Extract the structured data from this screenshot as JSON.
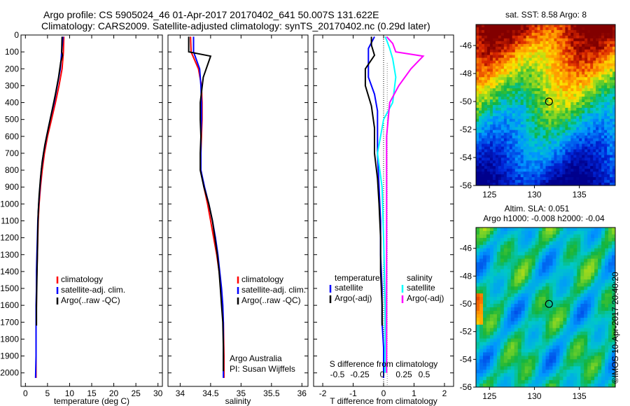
{
  "header": {
    "line1": "Argo profile: CS 5905024_46 01-Apr-2017 20170402_641 50.007S 131.622E",
    "line2": "Climatology: CARS2009. Satellite-adjusted climatology: synTS_20170402.nc (0.29d later)"
  },
  "colors": {
    "climatology": "#ff0000",
    "satellite": "#0000ff",
    "argo": "#000000",
    "salinity_satellite": "#00ffff",
    "salinity_argo": "#ff00ff"
  },
  "chart_data": [
    {
      "type": "line",
      "id": "temperature",
      "xlabel": "temperature (deg C)",
      "ylabel": "",
      "xlim": [
        -1,
        31
      ],
      "ylim": [
        2080,
        0
      ],
      "xticks": [
        0,
        5,
        10,
        15,
        20,
        25,
        30
      ],
      "yticks": [
        0,
        100,
        200,
        300,
        400,
        500,
        600,
        700,
        800,
        900,
        1000,
        1100,
        1200,
        1300,
        1400,
        1500,
        1600,
        1700,
        1800,
        1900,
        2000
      ],
      "legend": {
        "position": "bottom-right",
        "entries": [
          "climatology",
          "satellite-adj. clim.",
          "Argo(..raw -QC)"
        ]
      },
      "series": [
        {
          "name": "climatology",
          "x": [
            8.7,
            8.6,
            8.3,
            7.6,
            6.8,
            5.9,
            5.0,
            4.3,
            3.8,
            3.4,
            3.1,
            2.9,
            2.8,
            2.7,
            2.6,
            2.5,
            2.5,
            2.4,
            2.4,
            2.4
          ],
          "y": [
            10,
            100,
            200,
            300,
            400,
            500,
            600,
            700,
            800,
            900,
            1000,
            1100,
            1200,
            1300,
            1400,
            1500,
            1600,
            1700,
            1900,
            2030
          ]
        },
        {
          "name": "satellite-adj. clim.",
          "x": [
            8.5,
            8.2,
            7.9,
            7.2,
            6.5,
            5.6,
            4.8,
            4.1,
            3.6,
            3.3,
            3.0,
            2.8,
            2.7,
            2.6,
            2.5,
            2.5,
            2.4,
            2.4,
            2.4,
            2.3
          ],
          "y": [
            10,
            100,
            200,
            300,
            400,
            500,
            600,
            700,
            800,
            900,
            1000,
            1100,
            1200,
            1300,
            1400,
            1500,
            1600,
            1700,
            1900,
            2030
          ]
        },
        {
          "name": "Argo(..raw -QC)",
          "x": [
            8.3,
            8.2,
            8.4,
            8.0,
            7.5,
            6.8,
            6.0,
            5.2,
            4.4,
            3.8,
            3.4,
            3.1,
            2.9,
            2.8,
            2.7,
            2.6,
            2.5,
            2.5
          ],
          "y": [
            10,
            100,
            120,
            160,
            250,
            350,
            450,
            550,
            650,
            750,
            850,
            950,
            1050,
            1150,
            1300,
            1450,
            1600,
            1720
          ]
        }
      ]
    },
    {
      "type": "line",
      "id": "salinity",
      "xlabel": "salinity",
      "xlim": [
        33.8,
        36.1
      ],
      "ylim": [
        2080,
        0
      ],
      "xticks": [
        34,
        34.5,
        35,
        35.5,
        36
      ],
      "legend": {
        "position": "bottom-right",
        "entries": [
          "climatology",
          "satellite-adj. clim.",
          "Argo(..raw -QC)"
        ]
      },
      "annotation": [
        "Argo Australia",
        "PI: Susan Wijffels"
      ],
      "series": [
        {
          "name": "climatology",
          "x": [
            34.17,
            34.18,
            34.3,
            34.35,
            34.36,
            34.36,
            34.35,
            34.34,
            34.34,
            34.39,
            34.45,
            34.5,
            34.55,
            34.6,
            34.64,
            34.67,
            34.69,
            34.71,
            34.72,
            34.72
          ],
          "y": [
            10,
            100,
            200,
            300,
            400,
            500,
            600,
            700,
            800,
            900,
            1000,
            1100,
            1200,
            1300,
            1400,
            1500,
            1600,
            1700,
            1900,
            2030
          ]
        },
        {
          "name": "satellite-adj. clim.",
          "x": [
            34.22,
            34.22,
            34.32,
            34.34,
            34.35,
            34.35,
            34.34,
            34.34,
            34.34,
            34.4,
            34.47,
            34.53,
            34.58,
            34.62,
            34.65,
            34.68,
            34.7,
            34.71,
            34.71,
            34.71
          ],
          "y": [
            10,
            100,
            200,
            300,
            400,
            500,
            600,
            700,
            800,
            900,
            1000,
            1100,
            1200,
            1300,
            1400,
            1500,
            1600,
            1700,
            1900,
            2030
          ]
        },
        {
          "name": "Argo(..raw -QC)",
          "x": [
            34.14,
            34.14,
            34.5,
            34.38,
            34.33,
            34.33,
            34.34,
            34.33,
            34.33,
            34.39,
            34.47,
            34.53,
            34.57,
            34.61,
            34.64,
            34.66,
            34.68,
            34.7,
            34.71,
            34.71
          ],
          "y": [
            10,
            100,
            125,
            250,
            400,
            500,
            600,
            700,
            800,
            900,
            1000,
            1100,
            1200,
            1300,
            1400,
            1500,
            1600,
            1700,
            1850,
            1990
          ]
        }
      ]
    },
    {
      "type": "line",
      "id": "difference",
      "xlabel": "T difference from climatology",
      "xlabel_top": "S difference from climatology",
      "xlim": [
        -2.3,
        2.3
      ],
      "ylim": [
        2080,
        0
      ],
      "xticks": [
        -2,
        -1,
        0,
        1,
        2
      ],
      "xticks_s": [
        "-0.5",
        "-0.25",
        "0",
        "0.25",
        "0.5"
      ],
      "legend": {
        "position": "bottom",
        "titles": [
          "temperature",
          "salinity"
        ],
        "entries": [
          "satellite",
          "Argo(-adj)",
          "satellite",
          "Argo(-adj)"
        ]
      },
      "series": [
        {
          "name": "temperature satellite",
          "x": [
            -0.3,
            -0.5,
            -0.5,
            -0.5,
            -0.3,
            -0.2,
            -0.2,
            -0.2,
            -0.15,
            -0.1,
            -0.1,
            -0.05,
            -0.05,
            0,
            0
          ],
          "y": [
            10,
            80,
            150,
            250,
            350,
            450,
            550,
            700,
            900,
            1100,
            1300,
            1500,
            1700,
            1850,
            2030
          ]
        },
        {
          "name": "temperature Argo(-adj)",
          "x": [
            -0.4,
            -0.4,
            -0.3,
            -0.6,
            -0.6,
            -0.4,
            -0.3,
            -0.3,
            -0.2,
            -0.15,
            -0.1,
            -0.1,
            -0.05,
            -0.05
          ],
          "y": [
            10,
            60,
            120,
            200,
            300,
            420,
            550,
            700,
            850,
            1000,
            1200,
            1400,
            1600,
            1720
          ]
        },
        {
          "name": "salinity satellite",
          "x": [
            0.05,
            0.1,
            0.2,
            0.3,
            0.4,
            0.3,
            0.0,
            -0.2,
            -0.05,
            0.0,
            0.05,
            0.05
          ],
          "y": [
            10,
            30,
            80,
            140,
            250,
            400,
            500,
            700,
            900,
            1200,
            1600,
            2000
          ]
        },
        {
          "name": "salinity Argo(-adj)",
          "x": [
            0.1,
            0.3,
            0.4,
            1.3,
            0.9,
            0.5,
            0.2,
            0.1,
            0.1,
            0.1,
            0.1
          ],
          "y": [
            10,
            50,
            100,
            125,
            200,
            300,
            400,
            600,
            900,
            1400,
            2000
          ]
        }
      ]
    },
    {
      "type": "heatmap",
      "id": "sst-map",
      "title": "sat. SST: 8.58 Argo: 8",
      "xlim": [
        123.5,
        139
      ],
      "ylim": [
        -56,
        -44.5
      ],
      "xticks": [
        125,
        130,
        135
      ],
      "yticks": [
        -46,
        -48,
        -50,
        -52,
        -54,
        -56
      ],
      "marker": {
        "lon": 131.622,
        "lat": -50.007
      }
    },
    {
      "type": "heatmap",
      "id": "sla-map",
      "title": "Altim. SLA: 0.051",
      "subtitle": "Argo h1000: -0.008 h2000: -0.04",
      "xlim": [
        123.5,
        139
      ],
      "ylim": [
        -56,
        -44.5
      ],
      "xticks": [
        125,
        130,
        135
      ],
      "yticks": [
        -46,
        -48,
        -50,
        -52,
        -54,
        -56
      ],
      "marker": {
        "lon": 131.622,
        "lat": -50.007
      }
    }
  ],
  "stamp": "©IMOS 10-Apr-2017 20:40:20"
}
